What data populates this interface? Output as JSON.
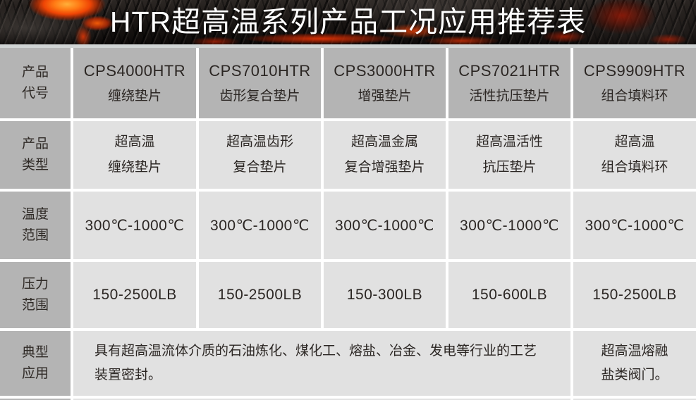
{
  "banner": {
    "title": "HTR超高温系列产品工况应用推荐表"
  },
  "table": {
    "row_headers": {
      "product_code": "产品\n代号",
      "product_type": "产品\n类型",
      "temperature_range": "温度\n范围",
      "pressure_range": "压力\n范围",
      "typical_application": "典型\n应用"
    },
    "products": [
      {
        "code": "CPS4000HTR",
        "name": "缠绕垫片",
        "type": "超高温\n缠绕垫片",
        "temperature": "300℃-1000℃",
        "pressure": "150-2500LB"
      },
      {
        "code": "CPS7010HTR",
        "name": "齿形复合垫片",
        "type": "超高温齿形\n复合垫片",
        "temperature": "300℃-1000℃",
        "pressure": "150-2500LB"
      },
      {
        "code": "CPS3000HTR",
        "name": "增强垫片",
        "type": "超高温金属\n复合增强垫片",
        "temperature": "300℃-1000℃",
        "pressure": "150-300LB"
      },
      {
        "code": "CPS7021HTR",
        "name": "活性抗压垫片",
        "type": "超高温活性\n抗压垫片",
        "temperature": "300℃-1000℃",
        "pressure": "150-600LB"
      },
      {
        "code": "CPS9909HTR",
        "name": "组合填料环",
        "type": "超高温\n组合填料环",
        "temperature": "300℃-1000℃",
        "pressure": "150-2500LB"
      }
    ],
    "application_merged": "具有超高温流体介质的石油炼化、煤化工、熔盐、冶金、发电等行业的工艺\n装置密封。",
    "application_last_column": "超高温熔融\n盐类阀门。"
  },
  "colors": {
    "banner_base": "#151110",
    "lava_orange": "#ff7b15",
    "lava_red": "#d03508",
    "header_cell_gray": "#b4b4b4",
    "data_cell_gray": "#e1e1e1",
    "cell_gap_white": "#ffffff",
    "separator_gray": "#d0d4d4",
    "text_dark": "#2b2623",
    "title_white": "#ffffff"
  }
}
